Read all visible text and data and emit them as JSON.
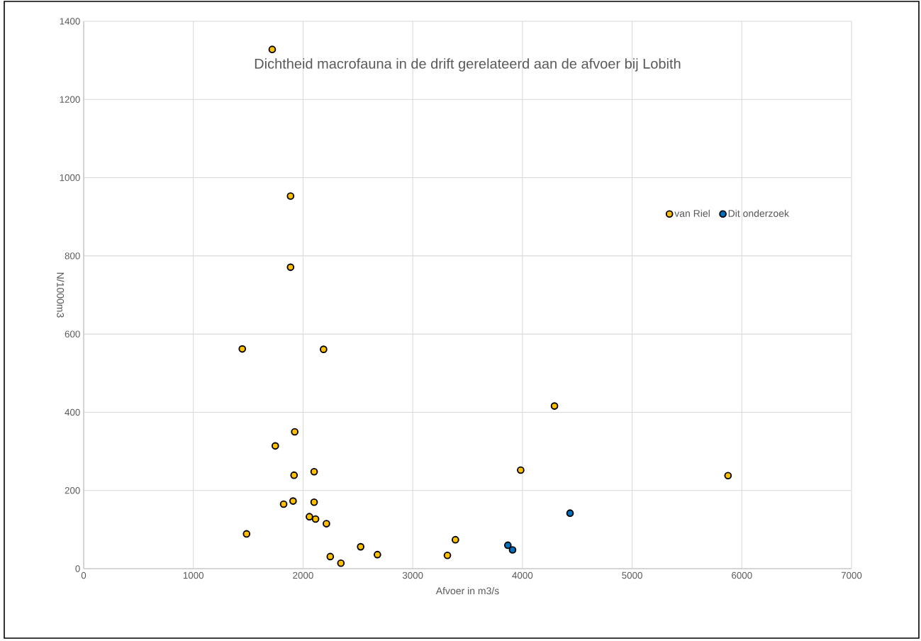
{
  "chart_data": {
    "type": "scatter",
    "title": "Dichtheid macrofauna in de drift gerelateerd aan de afvoer bij Lobith",
    "xlabel": "Afvoer in m3/s",
    "ylabel": "N/1000m3",
    "xlim": [
      0,
      7000
    ],
    "xticks": [
      0,
      1000,
      2000,
      3000,
      4000,
      5000,
      6000,
      7000
    ],
    "ylim": [
      0,
      1400
    ],
    "yticks": [
      0,
      200,
      400,
      600,
      800,
      1000,
      1200,
      1400
    ],
    "grid": true,
    "legend": "right",
    "marker": "circle",
    "series": [
      {
        "name": "van Riel",
        "color": "#ffc000",
        "x": [
          1719,
          1886,
          1886,
          1446,
          2187,
          1924,
          1747,
          1918,
          2101,
          1823,
          1909,
          2101,
          2058,
          2114,
          2213,
          1485,
          2525,
          2678,
          2248,
          2345,
          4292,
          3984,
          3389,
          3316,
          5874
        ],
        "values": [
          1328,
          953,
          771,
          562,
          561,
          350,
          314,
          239,
          248,
          165,
          173,
          170,
          133,
          127,
          115,
          89,
          56,
          36,
          31,
          14,
          416,
          252,
          74,
          34,
          238
        ]
      },
      {
        "name": "Dit onderzoek",
        "color": "#0070c0",
        "x": [
          4434,
          3867,
          3910
        ],
        "values": [
          142,
          60,
          48
        ]
      }
    ]
  }
}
